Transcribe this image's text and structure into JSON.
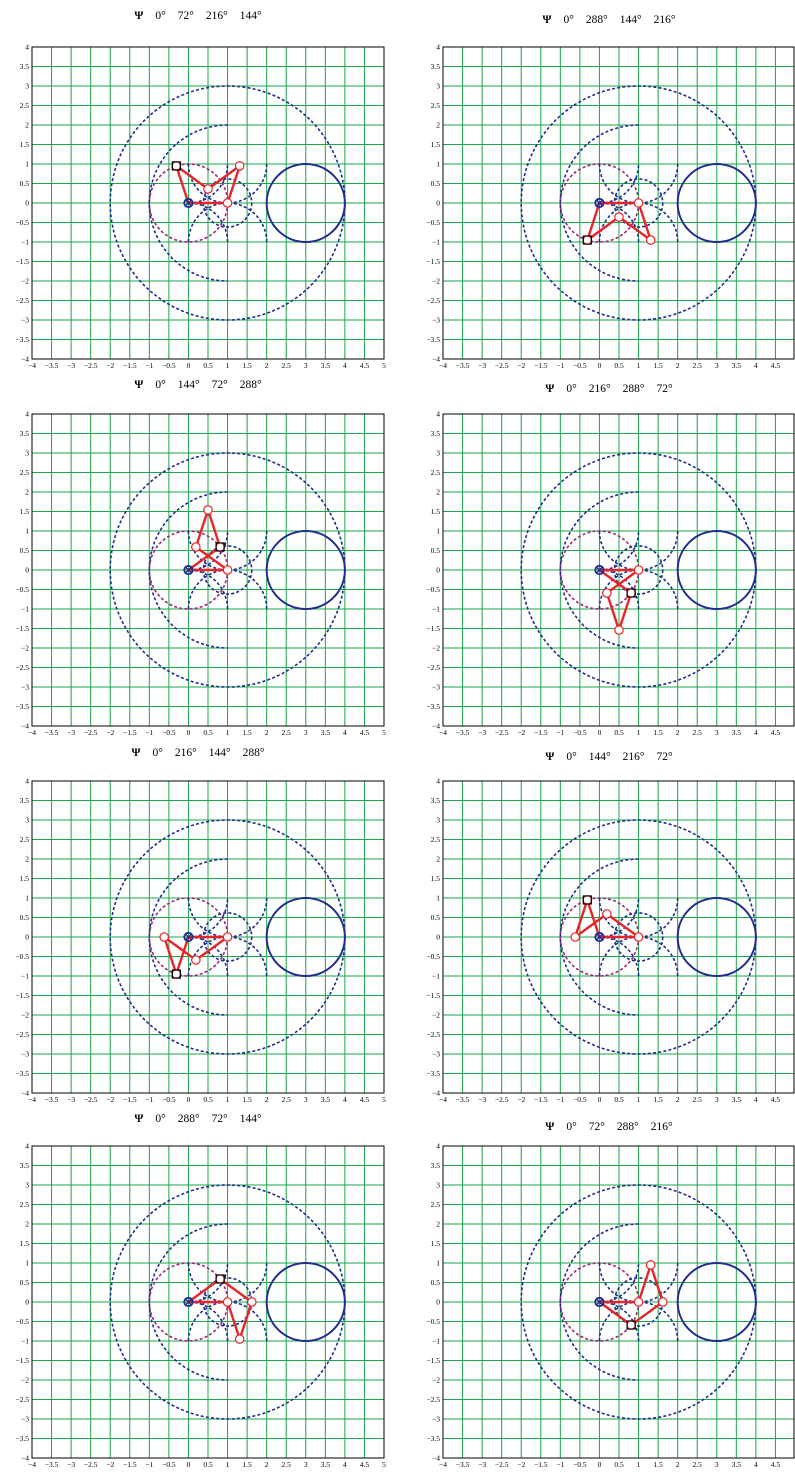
{
  "colors": {
    "grid": "#19a64a",
    "frame": "#000000",
    "circle": "#1f2d8c",
    "inner_circle": "#a0287a",
    "linkage": "#e8242b",
    "pivot": "#1f2d8c",
    "marker": "#000000"
  },
  "chart_data": [
    {
      "type": "scatter",
      "title_symbol": "Ψ",
      "title_angles": [
        "0°",
        "72°",
        "216°",
        "144°"
      ],
      "xlim": [
        -4,
        5
      ],
      "ylim": [
        -4,
        4
      ],
      "x_ticks": [
        "−4",
        "−3.5",
        "−3",
        "−2.5",
        "−2",
        "−1.5",
        "−1",
        "−0.5",
        "0",
        "0.5",
        "1",
        "1.5",
        "2",
        "2.5",
        "3",
        "3.5",
        "4",
        "4.5",
        "5"
      ],
      "y_ticks": [
        "4",
        "3.5",
        "3",
        "2.5",
        "2",
        "1.5",
        "1",
        "0.5",
        "0",
        "−0.5",
        "−1",
        "−1.5",
        "−2",
        "−2.5",
        "−3",
        "−3.5",
        "−4"
      ],
      "grid": true,
      "linkage": [
        [
          0,
          0
        ],
        [
          1,
          0
        ],
        [
          1.31,
          0.95
        ],
        [
          0.5,
          0.36
        ],
        [
          -0.31,
          0.95
        ],
        [
          0,
          0
        ]
      ],
      "square_marker": [
        -0.31,
        0.95
      ]
    },
    {
      "type": "scatter",
      "title_symbol": "Ψ",
      "title_angles": [
        "0°",
        "288°",
        "144°",
        "216°"
      ],
      "xlim": [
        -4,
        5
      ],
      "ylim": [
        -4,
        4
      ],
      "x_ticks": [
        "−4",
        "−3.5",
        "−3",
        "−2.5",
        "−2",
        "−1.5",
        "−1",
        "−0.5",
        "0",
        "0.5",
        "1",
        "1.5",
        "2",
        "2.5",
        "3",
        "3.5",
        "4",
        "4.5",
        "5"
      ],
      "y_ticks": [
        "4",
        "3.5",
        "3",
        "2.5",
        "2",
        "1.5",
        "1",
        "0.5",
        "0",
        "−0.5",
        "−1",
        "−1.5",
        "−2",
        "−2.5",
        "−3",
        "−3.5",
        "−4"
      ],
      "grid": true,
      "linkage": [
        [
          0,
          0
        ],
        [
          1,
          0
        ],
        [
          1.31,
          -0.95
        ],
        [
          0.5,
          -0.36
        ],
        [
          -0.31,
          -0.95
        ],
        [
          0,
          0
        ]
      ],
      "square_marker": [
        -0.31,
        -0.95
      ]
    },
    {
      "type": "scatter",
      "title_symbol": "Ψ",
      "title_angles": [
        "0°",
        "144°",
        "72°",
        "288°"
      ],
      "xlim": [
        -4,
        5
      ],
      "ylim": [
        -4,
        4
      ],
      "x_ticks": [
        "−4",
        "−3.5",
        "−3",
        "−2.5",
        "−2",
        "−1.5",
        "−1",
        "−0.5",
        "0",
        "0.5",
        "1",
        "1.5",
        "2",
        "2.5",
        "3",
        "3.5",
        "4",
        "4.5",
        "5"
      ],
      "y_ticks": [
        "4",
        "3.5",
        "3",
        "2.5",
        "2",
        "1.5",
        "1",
        "0.5",
        "0",
        "−0.5",
        "−1",
        "−1.5",
        "−2",
        "−2.5",
        "−3",
        "−3.5",
        "−4"
      ],
      "grid": true,
      "linkage": [
        [
          0,
          0
        ],
        [
          1,
          0
        ],
        [
          0.19,
          0.59
        ],
        [
          0.5,
          1.54
        ],
        [
          0.81,
          0.59
        ],
        [
          0,
          0
        ]
      ],
      "square_marker": [
        0.81,
        0.59
      ]
    },
    {
      "type": "scatter",
      "title_symbol": "Ψ",
      "title_angles": [
        "0°",
        "216°",
        "288°",
        "72°"
      ],
      "xlim": [
        -4,
        5
      ],
      "ylim": [
        -4,
        4
      ],
      "x_ticks": [
        "−4",
        "−3.5",
        "−3",
        "−2.5",
        "−2",
        "−1.5",
        "−1",
        "−0.5",
        "0",
        "0.5",
        "1",
        "1.5",
        "2",
        "2.5",
        "3",
        "3.5",
        "4",
        "4.5",
        "5"
      ],
      "y_ticks": [
        "4",
        "3.5",
        "3",
        "2.5",
        "2",
        "1.5",
        "1",
        "0.5",
        "0",
        "−0.5",
        "−1",
        "−1.5",
        "−2",
        "−2.5",
        "−3",
        "−3.5",
        "−4"
      ],
      "grid": true,
      "linkage": [
        [
          0,
          0
        ],
        [
          1,
          0
        ],
        [
          0.19,
          -0.59
        ],
        [
          0.5,
          -1.54
        ],
        [
          0.81,
          -0.59
        ],
        [
          0,
          0
        ]
      ],
      "square_marker": [
        0.81,
        -0.59
      ]
    },
    {
      "type": "scatter",
      "title_symbol": "Ψ",
      "title_angles": [
        "0°",
        "216°",
        "144°",
        "288°"
      ],
      "xlim": [
        -4,
        5
      ],
      "ylim": [
        -4,
        4
      ],
      "x_ticks": [
        "−4",
        "−3.5",
        "−3",
        "−2.5",
        "−2",
        "−1.5",
        "−1",
        "−0.5",
        "0",
        "0.5",
        "1",
        "1.5",
        "2",
        "2.5",
        "3",
        "3.5",
        "4",
        "4.5",
        "5"
      ],
      "y_ticks": [
        "4",
        "3.5",
        "3",
        "2.5",
        "2",
        "1.5",
        "1",
        "0.5",
        "0",
        "−0.5",
        "−1",
        "−1.5",
        "−2",
        "−2.5",
        "−3",
        "−3.5",
        "−4"
      ],
      "grid": true,
      "linkage": [
        [
          0,
          0
        ],
        [
          1,
          0
        ],
        [
          0.19,
          -0.59
        ],
        [
          -0.62,
          0
        ],
        [
          -0.31,
          -0.95
        ],
        [
          0,
          0
        ]
      ],
      "square_marker": [
        -0.31,
        -0.95
      ]
    },
    {
      "type": "scatter",
      "title_symbol": "Ψ",
      "title_angles": [
        "0°",
        "144°",
        "216°",
        "72°"
      ],
      "xlim": [
        -4,
        5
      ],
      "ylim": [
        -4,
        4
      ],
      "x_ticks": [
        "−4",
        "−3.5",
        "−3",
        "−2.5",
        "−2",
        "−1.5",
        "−1",
        "−0.5",
        "0",
        "0.5",
        "1",
        "1.5",
        "2",
        "2.5",
        "3",
        "3.5",
        "4",
        "4.5",
        "5"
      ],
      "y_ticks": [
        "4",
        "3.5",
        "3",
        "2.5",
        "2",
        "1.5",
        "1",
        "0.5",
        "0",
        "−0.5",
        "−1",
        "−1.5",
        "−2",
        "−2.5",
        "−3",
        "−3.5",
        "−4"
      ],
      "grid": true,
      "linkage": [
        [
          0,
          0
        ],
        [
          1,
          0
        ],
        [
          0.19,
          0.59
        ],
        [
          -0.62,
          0
        ],
        [
          -0.31,
          0.95
        ],
        [
          0,
          0
        ]
      ],
      "square_marker": [
        -0.31,
        0.95
      ]
    },
    {
      "type": "scatter",
      "title_symbol": "Ψ",
      "title_angles": [
        "0°",
        "288°",
        "72°",
        "144°"
      ],
      "xlim": [
        -4,
        5
      ],
      "ylim": [
        -4,
        4
      ],
      "x_ticks": [
        "−4",
        "−3.5",
        "−3",
        "−2.5",
        "−2",
        "−1.5",
        "−1",
        "−0.5",
        "0",
        "0.5",
        "1",
        "1.5",
        "2",
        "2.5",
        "3",
        "3.5",
        "4",
        "4.5",
        "5"
      ],
      "y_ticks": [
        "4",
        "3.5",
        "3",
        "2.5",
        "2",
        "1.5",
        "1",
        "0.5",
        "0",
        "−0.5",
        "−1",
        "−1.5",
        "−2",
        "−2.5",
        "−3",
        "−3.5",
        "−4"
      ],
      "grid": true,
      "linkage": [
        [
          0,
          0
        ],
        [
          1,
          0
        ],
        [
          1.31,
          -0.95
        ],
        [
          1.62,
          0
        ],
        [
          0.81,
          0.59
        ],
        [
          0,
          0
        ]
      ],
      "square_marker": [
        0.81,
        0.59
      ]
    },
    {
      "type": "scatter",
      "title_symbol": "Ψ",
      "title_angles": [
        "0°",
        "72°",
        "288°",
        "216°"
      ],
      "xlim": [
        -4,
        5
      ],
      "ylim": [
        -4,
        4
      ],
      "x_ticks": [
        "−4",
        "−3.5",
        "−3",
        "−2.5",
        "−2",
        "−1.5",
        "−1",
        "−0.5",
        "0",
        "0.5",
        "1",
        "1.5",
        "2",
        "2.5",
        "3",
        "3.5",
        "4",
        "4.5",
        "5"
      ],
      "y_ticks": [
        "4",
        "3.5",
        "3",
        "2.5",
        "2",
        "1.5",
        "1",
        "0.5",
        "0",
        "−0.5",
        "−1",
        "−1.5",
        "−2",
        "−2.5",
        "−3",
        "−3.5",
        "−4"
      ],
      "grid": true,
      "linkage": [
        [
          0,
          0
        ],
        [
          1,
          0
        ],
        [
          1.31,
          0.95
        ],
        [
          1.62,
          0
        ],
        [
          0.81,
          -0.59
        ],
        [
          0,
          0
        ]
      ],
      "square_marker": [
        0.81,
        -0.59
      ]
    }
  ],
  "curves": {
    "outer_circle": {
      "center": [
        1,
        0
      ],
      "radius": 3
    },
    "right_circle": {
      "center": [
        3,
        0
      ],
      "radius": 1
    },
    "inner_circle": {
      "center": [
        0,
        0
      ],
      "radius": 1
    },
    "small_circle": {
      "center": [
        1,
        0
      ],
      "radius": 0.618
    },
    "arcs_center_right": {
      "center": [
        2,
        0
      ],
      "radius": 2,
      "from_deg": 90,
      "to_deg": 270
    },
    "arcs_center_top": {
      "center": [
        1,
        0.618
      ],
      "radius": 1.4,
      "from_deg": 180,
      "to_deg": 360
    }
  }
}
